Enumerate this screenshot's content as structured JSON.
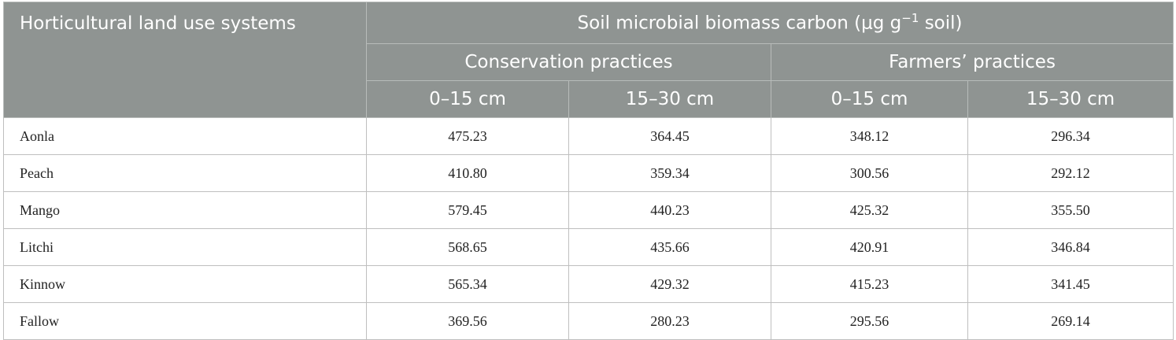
{
  "table": {
    "row_header": "Horticultural land use systems",
    "group_title_prefix": "Soil microbial biomass carbon (μg g",
    "group_title_exp": "−1",
    "group_title_suffix": " soil)",
    "practices": [
      "Conservation practices",
      "Farmers’ practices"
    ],
    "depths": [
      "0–15 cm",
      "15–30 cm",
      "0–15 cm",
      "15–30 cm"
    ],
    "rows": [
      {
        "name": "Aonla",
        "values": [
          "475.23",
          "364.45",
          "348.12",
          "296.34"
        ]
      },
      {
        "name": "Peach",
        "values": [
          "410.80",
          "359.34",
          "300.56",
          "292.12"
        ]
      },
      {
        "name": "Mango",
        "values": [
          "579.45",
          "440.23",
          "425.32",
          "355.50"
        ]
      },
      {
        "name": "Litchi",
        "values": [
          "568.65",
          "435.66",
          "420.91",
          "346.84"
        ]
      },
      {
        "name": "Kinnow",
        "values": [
          "565.34",
          "429.32",
          "415.23",
          "341.45"
        ]
      },
      {
        "name": "Fallow",
        "values": [
          "369.56",
          "280.23",
          "295.56",
          "269.14"
        ]
      }
    ]
  }
}
